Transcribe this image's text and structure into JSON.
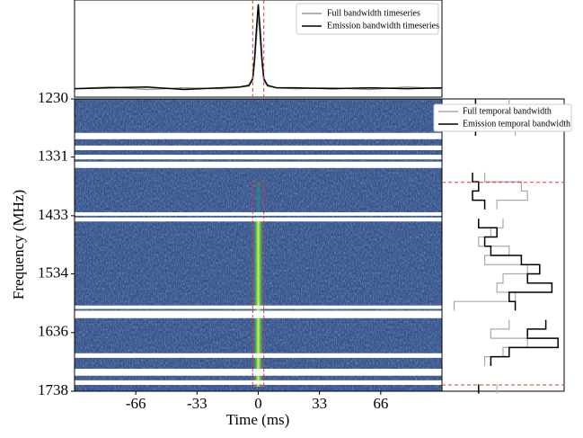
{
  "chart_data": {
    "type": "dynamic_spectrum",
    "xlabel": "Time (ms)",
    "ylabel": "Frequency (MHz)",
    "xlim": [
      -99,
      99
    ],
    "ylim": [
      1230,
      1738
    ],
    "xticks": [
      -66,
      -33,
      0,
      33,
      66
    ],
    "yticks": [
      1230,
      1331,
      1433,
      1534,
      1636,
      1738
    ],
    "masked_bands": [
      [
        1289,
        1300
      ],
      [
        1311,
        1319
      ],
      [
        1327,
        1335
      ],
      [
        1339,
        1350
      ],
      [
        1427,
        1433
      ],
      [
        1436,
        1443
      ],
      [
        1589,
        1595
      ],
      [
        1598,
        1611
      ],
      [
        1672,
        1680
      ],
      [
        1699,
        1711
      ],
      [
        1719,
        1727
      ]
    ],
    "burst": {
      "time": 0,
      "freq_range": [
        1440,
        1730
      ]
    },
    "emission_window": {
      "time": [
        -3,
        3
      ],
      "freq": [
        1375,
        1727
      ],
      "color": "#e8352e"
    },
    "timeseries": {
      "x": [
        -99,
        -80,
        -60,
        -40,
        -20,
        -10,
        -5,
        -3,
        -2,
        -1,
        0,
        1,
        2,
        3,
        5,
        10,
        20,
        40,
        60,
        80,
        99
      ],
      "ylim": [
        -0.1,
        1.05
      ],
      "series": [
        {
          "name": "Full bandwidth timeseries",
          "color": "#999999",
          "values": [
            0,
            0.02,
            -0.01,
            0.01,
            0,
            0.02,
            0.03,
            0.1,
            0.3,
            0.6,
            0.9,
            0.6,
            0.3,
            0.1,
            0.03,
            0.01,
            0,
            0.01,
            -0.01,
            0.02,
            0
          ]
        },
        {
          "name": "Emission bandwidth timeseries",
          "color": "#000000",
          "values": [
            0,
            0.01,
            0.02,
            -0.01,
            0.01,
            0.02,
            0.04,
            0.12,
            0.35,
            0.7,
            1.0,
            0.7,
            0.35,
            0.12,
            0.04,
            0.01,
            0.01,
            0,
            0.01,
            0,
            0.01
          ]
        }
      ]
    },
    "spectrum": {
      "y": [
        1238,
        1254,
        1270,
        1286,
        1302,
        1318,
        1334,
        1350,
        1366,
        1382,
        1398,
        1414,
        1430,
        1446,
        1462,
        1478,
        1494,
        1510,
        1526,
        1542,
        1558,
        1574,
        1590,
        1606,
        1622,
        1638,
        1654,
        1670,
        1686,
        1702,
        1718,
        1734
      ],
      "xlim": [
        -0.5,
        1.5
      ],
      "series": [
        {
          "name": "Full temporal bandwidth",
          "color": "#aaaaaa",
          "values": [
            0.6,
            0.3,
            0.5,
            0.7,
            null,
            null,
            null,
            null,
            0.2,
            0.8,
            0.9,
            0.4,
            null,
            0.5,
            0.3,
            0.1,
            0.6,
            0.2,
            0.9,
            0.5,
            0.4,
            0.7,
            -0.3,
            null,
            0.6,
            0.3,
            0.9,
            0.5,
            0.2,
            null,
            null,
            0.4
          ]
        },
        {
          "name": "Emission temporal bandwidth",
          "color": "#000000",
          "values": [
            0.05,
            0.1,
            -0.05,
            0.05,
            null,
            null,
            null,
            null,
            0.0,
            0.1,
            0.0,
            0.2,
            null,
            0.1,
            0.4,
            0.2,
            0.3,
            0.8,
            1.1,
            0.9,
            1.3,
            0.6,
            0.7,
            null,
            1.2,
            0.9,
            1.4,
            0.6,
            0.3,
            null,
            null,
            0.1
          ]
        }
      ]
    }
  }
}
